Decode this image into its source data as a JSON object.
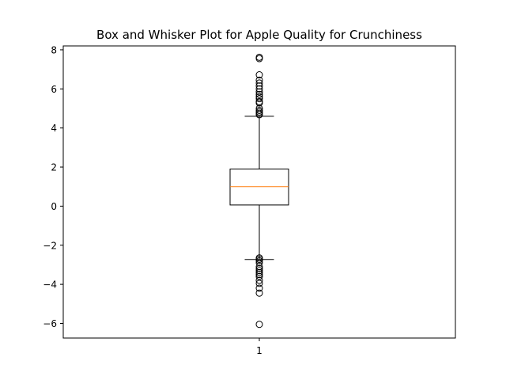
{
  "chart_data": {
    "type": "box",
    "title": "Box and Whisker Plot for Apple Quality for Crunchiness",
    "xlabel": "",
    "ylabel": "",
    "categories": [
      "1"
    ],
    "ylim": [
      -6.75,
      8.2
    ],
    "yticks": [
      -6,
      -4,
      -2,
      0,
      2,
      4,
      6,
      8
    ],
    "ytick_labels": [
      "−6",
      "−4",
      "−2",
      "0",
      "2",
      "4",
      "6",
      "8"
    ],
    "grid": false,
    "box": {
      "q1": 0.06,
      "median": 1.0,
      "q3": 1.9,
      "whisker_low": -2.73,
      "whisker_high": 4.6
    },
    "outliers": [
      7.62,
      7.55,
      6.72,
      6.45,
      6.3,
      6.15,
      6.0,
      5.85,
      5.72,
      5.6,
      5.5,
      5.35,
      5.28,
      5.0,
      4.9,
      4.82,
      4.75,
      4.68,
      -2.65,
      -2.72,
      -2.8,
      -2.9,
      -3.1,
      -3.2,
      -3.3,
      -3.4,
      -3.5,
      -3.6,
      -3.8,
      -3.95,
      -4.2,
      -4.45,
      -6.05
    ],
    "colors": {
      "box": "#000000",
      "median": "#ff7f0e",
      "outlier_edge": "#000000"
    }
  }
}
